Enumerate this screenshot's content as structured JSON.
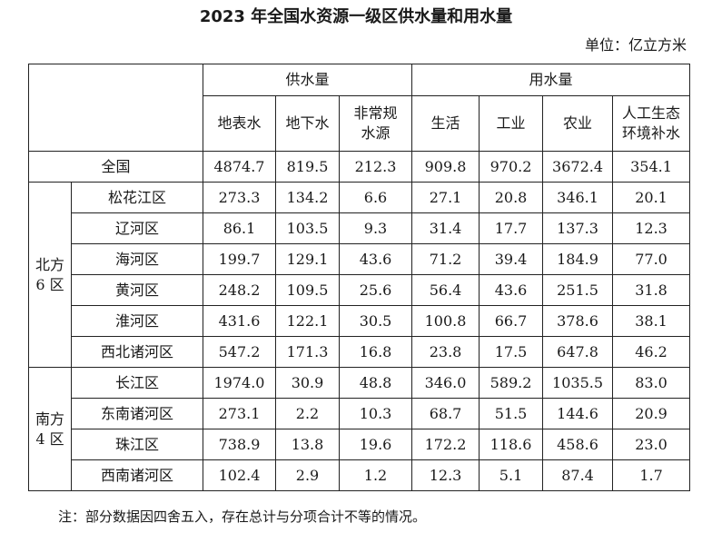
{
  "title": "2023 年全国水资源一级区供水量和用水量",
  "unit": "单位：亿立方米",
  "header": {
    "supply": "供水量",
    "use": "用水量",
    "surface": "地表水",
    "ground": "地下水",
    "unconventional_1": "非常规",
    "unconventional_2": "水源",
    "domestic": "生活",
    "industry": "工业",
    "agriculture": "农业",
    "eco_1": "人工生态",
    "eco_2": "环境补水"
  },
  "national": {
    "label": "全国",
    "values": [
      "4874.7",
      "819.5",
      "212.3",
      "909.8",
      "970.2",
      "3672.4",
      "354.1"
    ]
  },
  "groups": [
    {
      "label_1": "北方",
      "label_2": "6 区",
      "rows": [
        {
          "name": "松花江区",
          "values": [
            "273.3",
            "134.2",
            "6.6",
            "27.1",
            "20.8",
            "346.1",
            "20.1"
          ]
        },
        {
          "name": "辽河区",
          "values": [
            "86.1",
            "103.5",
            "9.3",
            "31.4",
            "17.7",
            "137.3",
            "12.3"
          ]
        },
        {
          "name": "海河区",
          "values": [
            "199.7",
            "129.1",
            "43.6",
            "71.2",
            "39.4",
            "184.9",
            "77.0"
          ]
        },
        {
          "name": "黄河区",
          "values": [
            "248.2",
            "109.5",
            "25.6",
            "56.4",
            "43.6",
            "251.5",
            "31.8"
          ]
        },
        {
          "name": "淮河区",
          "values": [
            "431.6",
            "122.1",
            "30.5",
            "100.8",
            "66.7",
            "378.6",
            "38.1"
          ]
        },
        {
          "name": "西北诸河区",
          "values": [
            "547.2",
            "171.3",
            "16.8",
            "23.8",
            "17.5",
            "647.8",
            "46.2"
          ]
        }
      ]
    },
    {
      "label_1": "南方",
      "label_2": "4 区",
      "rows": [
        {
          "name": "长江区",
          "values": [
            "1974.0",
            "30.9",
            "48.8",
            "346.0",
            "589.2",
            "1035.5",
            "83.0"
          ]
        },
        {
          "name": "东南诸河区",
          "values": [
            "273.1",
            "2.2",
            "10.3",
            "68.7",
            "51.5",
            "144.6",
            "20.9"
          ]
        },
        {
          "name": "珠江区",
          "values": [
            "738.9",
            "13.8",
            "19.6",
            "172.2",
            "118.6",
            "458.6",
            "23.0"
          ]
        },
        {
          "name": "西南诸河区",
          "values": [
            "102.4",
            "2.9",
            "1.2",
            "12.3",
            "5.1",
            "87.4",
            "1.7"
          ]
        }
      ]
    }
  ],
  "note": "注：部分数据因四舍五入，存在总计与分项合计不等的情况。"
}
